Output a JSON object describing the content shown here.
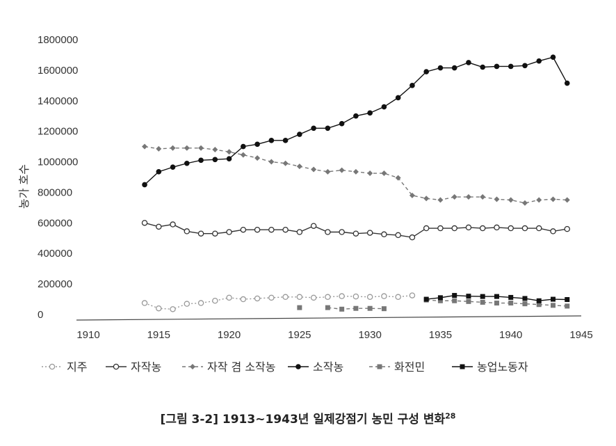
{
  "caption": {
    "main": "[그림 3-2] 1913~1943년 일제강점기 농민 구성 변화",
    "footnote": "28"
  },
  "chart_data": {
    "type": "line",
    "title": "[그림 3-2] 1913~1943년 일제강점기 농민 구성 변화",
    "xlabel": "",
    "ylabel": "농가 호수",
    "xlim": [
      1910,
      1945
    ],
    "ylim": [
      0,
      1800000
    ],
    "x_ticks": [
      1910,
      1915,
      1920,
      1925,
      1930,
      1935,
      1940,
      1945
    ],
    "y_ticks": [
      0,
      200000,
      400000,
      600000,
      800000,
      1000000,
      1200000,
      1400000,
      1600000,
      1800000
    ],
    "grid": false,
    "legend_position": "bottom",
    "series": [
      {
        "name": "지주",
        "color": "#999999",
        "line": "dotted",
        "marker": "open-circle",
        "x": [
          1914,
          1915,
          1916,
          1917,
          1918,
          1919,
          1920,
          1921,
          1922,
          1923,
          1924,
          1925,
          1926,
          1927,
          1928,
          1929,
          1930,
          1931,
          1932,
          1933
        ],
        "values": [
          75000,
          40000,
          35000,
          70000,
          75000,
          90000,
          110000,
          100000,
          105000,
          110000,
          115000,
          115000,
          110000,
          115000,
          120000,
          118000,
          115000,
          120000,
          115000,
          125000
        ]
      },
      {
        "name": "자작농",
        "color": "#333333",
        "line": "solid",
        "marker": "open-circle",
        "x": [
          1914,
          1915,
          1916,
          1917,
          1918,
          1919,
          1920,
          1921,
          1922,
          1923,
          1924,
          1925,
          1926,
          1927,
          1928,
          1929,
          1930,
          1931,
          1932,
          1933,
          1934,
          1935,
          1936,
          1937,
          1938,
          1939,
          1940,
          1941,
          1942,
          1943,
          1944
        ],
        "values": [
          600000,
          575000,
          590000,
          545000,
          530000,
          530000,
          540000,
          555000,
          555000,
          555000,
          555000,
          540000,
          580000,
          540000,
          540000,
          530000,
          535000,
          525000,
          520000,
          505000,
          565000,
          565000,
          565000,
          570000,
          565000,
          570000,
          565000,
          565000,
          565000,
          545000,
          560000
        ]
      },
      {
        "name": "자작 겸 소작농",
        "color": "#777777",
        "line": "dashed",
        "marker": "filled-diamond",
        "x": [
          1914,
          1915,
          1916,
          1917,
          1918,
          1919,
          1920,
          1921,
          1922,
          1923,
          1924,
          1925,
          1926,
          1927,
          1928,
          1929,
          1930,
          1931,
          1932,
          1933,
          1934,
          1935,
          1936,
          1937,
          1938,
          1939,
          1940,
          1941,
          1942,
          1943,
          1944
        ],
        "values": [
          1100000,
          1085000,
          1090000,
          1090000,
          1090000,
          1080000,
          1065000,
          1045000,
          1025000,
          1000000,
          990000,
          970000,
          950000,
          935000,
          945000,
          935000,
          925000,
          925000,
          895000,
          780000,
          760000,
          750000,
          770000,
          770000,
          770000,
          755000,
          750000,
          730000,
          750000,
          755000,
          750000
        ]
      },
      {
        "name": "소작농",
        "color": "#111111",
        "line": "solid",
        "marker": "filled-circle",
        "x": [
          1914,
          1915,
          1916,
          1917,
          1918,
          1919,
          1920,
          1921,
          1922,
          1923,
          1924,
          1925,
          1926,
          1927,
          1928,
          1929,
          1930,
          1931,
          1932,
          1933,
          1934,
          1935,
          1936,
          1937,
          1938,
          1939,
          1940,
          1941,
          1942,
          1943,
          1944
        ],
        "values": [
          850000,
          935000,
          965000,
          990000,
          1010000,
          1015000,
          1020000,
          1100000,
          1115000,
          1140000,
          1140000,
          1180000,
          1220000,
          1220000,
          1250000,
          1300000,
          1320000,
          1360000,
          1420000,
          1500000,
          1590000,
          1615000,
          1615000,
          1650000,
          1620000,
          1625000,
          1625000,
          1630000,
          1660000,
          1685000,
          1515000
        ]
      },
      {
        "name": "화전민",
        "color": "#777777",
        "line": "dashed",
        "marker": "filled-square",
        "x": [
          1925,
          1927,
          1928,
          1929,
          1930,
          1931,
          1934,
          1935,
          1936,
          1937,
          1938,
          1939,
          1940,
          1941,
          1942,
          1943,
          1944
        ],
        "values": [
          45000,
          45000,
          35000,
          40000,
          40000,
          38000,
          95000,
          90000,
          90000,
          85000,
          80000,
          75000,
          75000,
          70000,
          65000,
          60000,
          55000
        ]
      },
      {
        "name": "농업노동자",
        "color": "#111111",
        "line": "solid",
        "marker": "filled-square",
        "x": [
          1934,
          1935,
          1936,
          1937,
          1938,
          1939,
          1940,
          1941,
          1942,
          1943,
          1944
        ],
        "values": [
          100000,
          110000,
          125000,
          120000,
          118000,
          118000,
          112000,
          105000,
          90000,
          100000,
          98000
        ]
      }
    ]
  }
}
